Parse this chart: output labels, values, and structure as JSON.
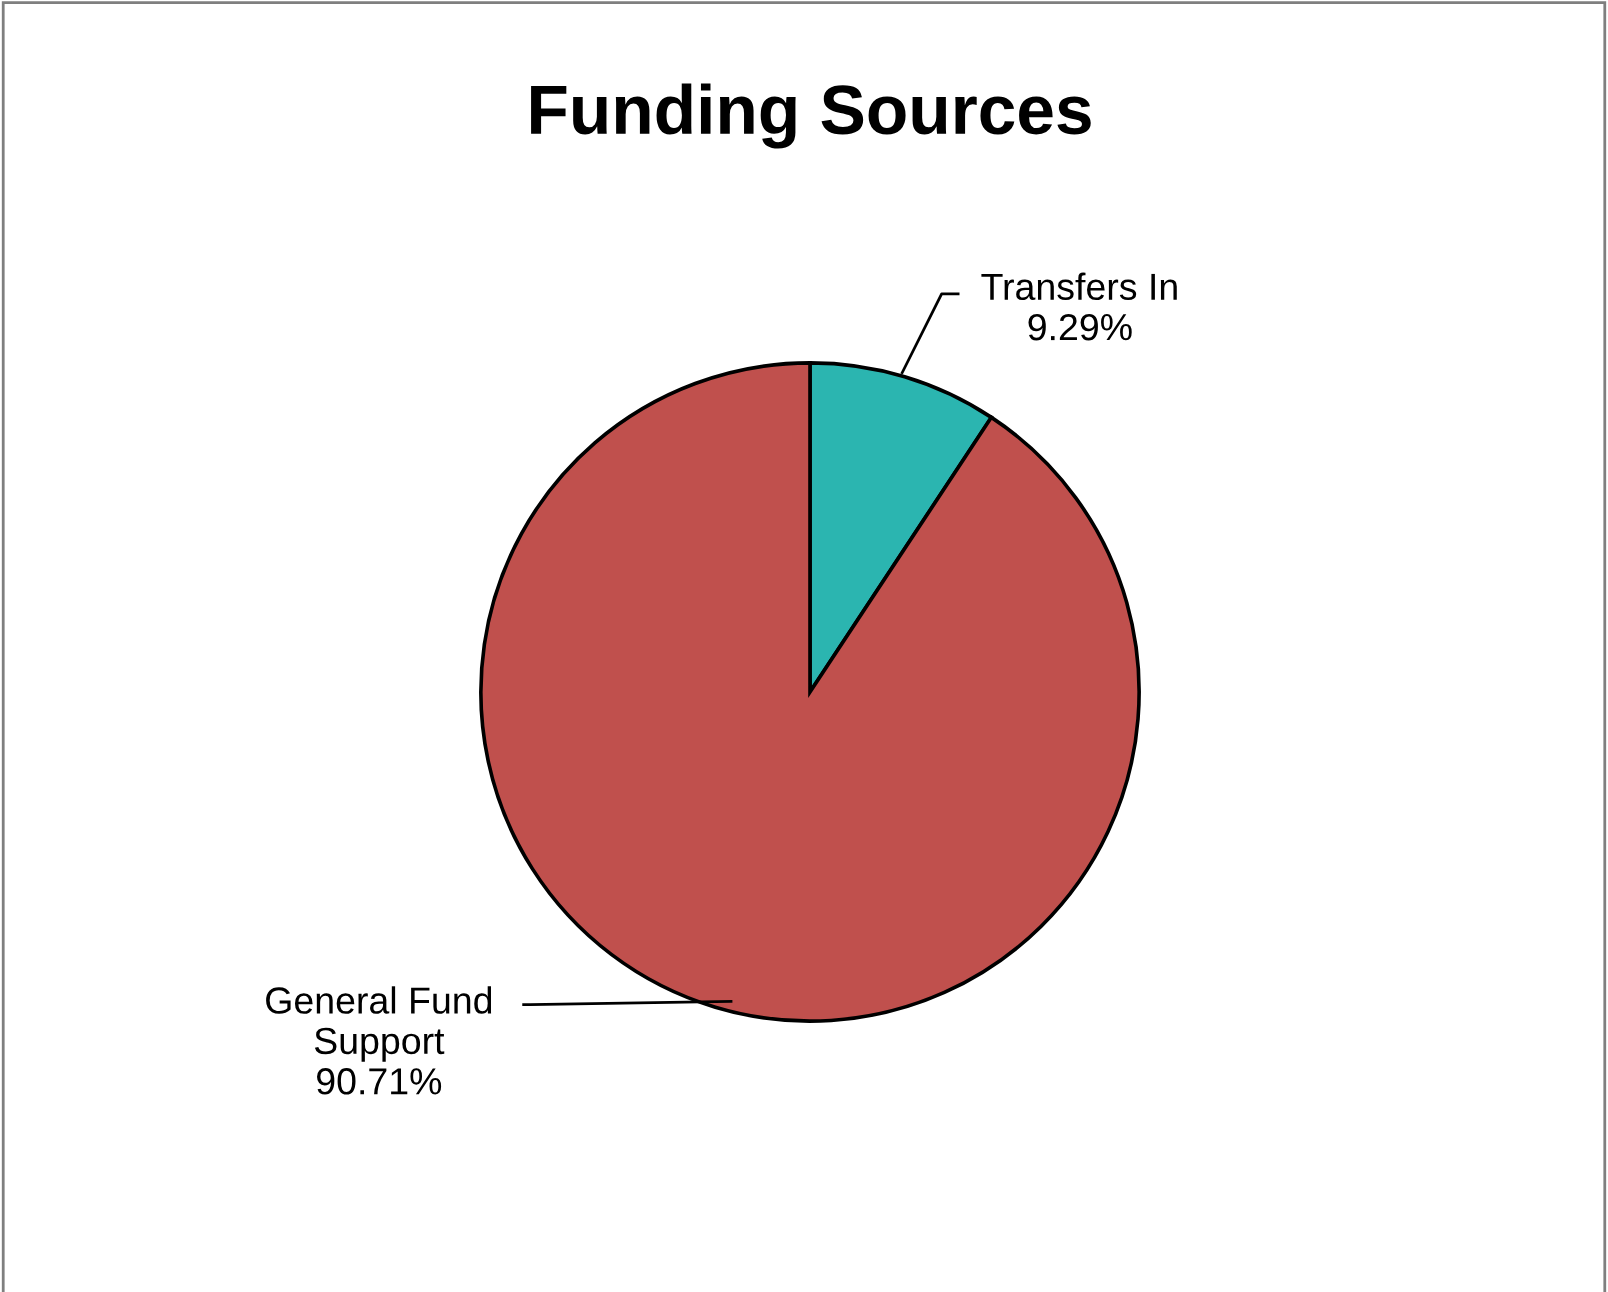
{
  "chart_data": {
    "type": "pie",
    "title": "Funding Sources",
    "categories": [
      "Transfers In",
      "General Fund\nSupport"
    ],
    "values": [
      9.29,
      90.71
    ],
    "value_labels": [
      "9.29%",
      "90.71%"
    ],
    "colors": [
      "#2bb5b0",
      "#c0504d"
    ],
    "legend": false
  }
}
